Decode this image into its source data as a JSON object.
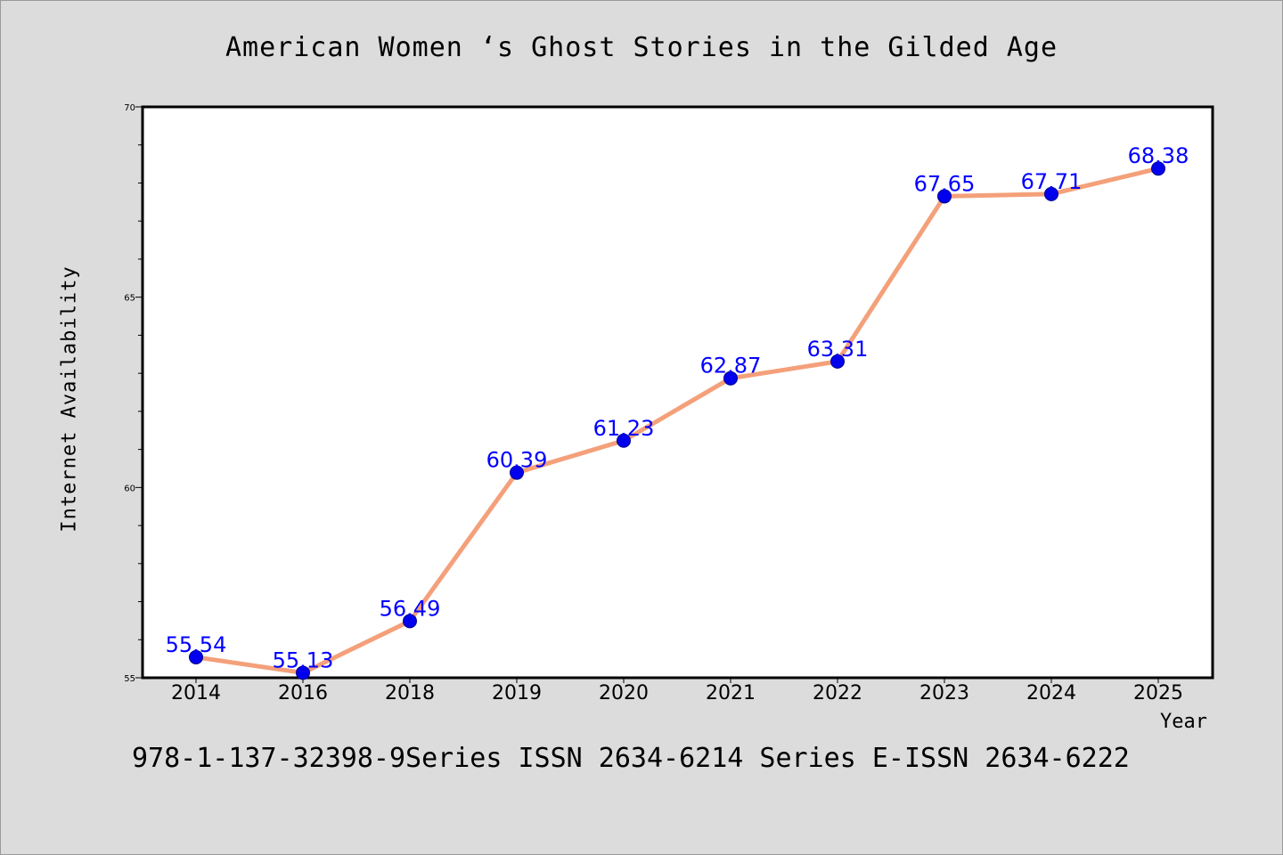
{
  "chart_data": {
    "type": "line",
    "title": "American Women ‘s Ghost Stories in the Gilded Age",
    "xlabel": "Year",
    "ylabel": "Internet Availability",
    "categories": [
      "2014",
      "2016",
      "2018",
      "2019",
      "2020",
      "2021",
      "2022",
      "2023",
      "2024",
      "2025"
    ],
    "series": [
      {
        "values": [
          55.54,
          55.13,
          56.49,
          60.39,
          61.23,
          62.87,
          63.31,
          67.65,
          67.71,
          68.38
        ],
        "data_labels": [
          "55.54",
          "55.13",
          "56.49",
          "60.39",
          "61.23",
          "62.87",
          "63.31",
          "67.65",
          "67.71",
          "68.38"
        ]
      }
    ],
    "ylim": [
      55,
      70
    ],
    "yticks": [
      55,
      60,
      65,
      70
    ],
    "grid": false,
    "colors": {
      "line": "#f4a07a",
      "marker": "#0000ee",
      "data_label": "#0000ff",
      "background": "#dcdcdc",
      "plot_background": "#ffffff"
    }
  },
  "footer": "978-1-137-32398-9Series ISSN 2634-6214 Series E-ISSN 2634-6222"
}
